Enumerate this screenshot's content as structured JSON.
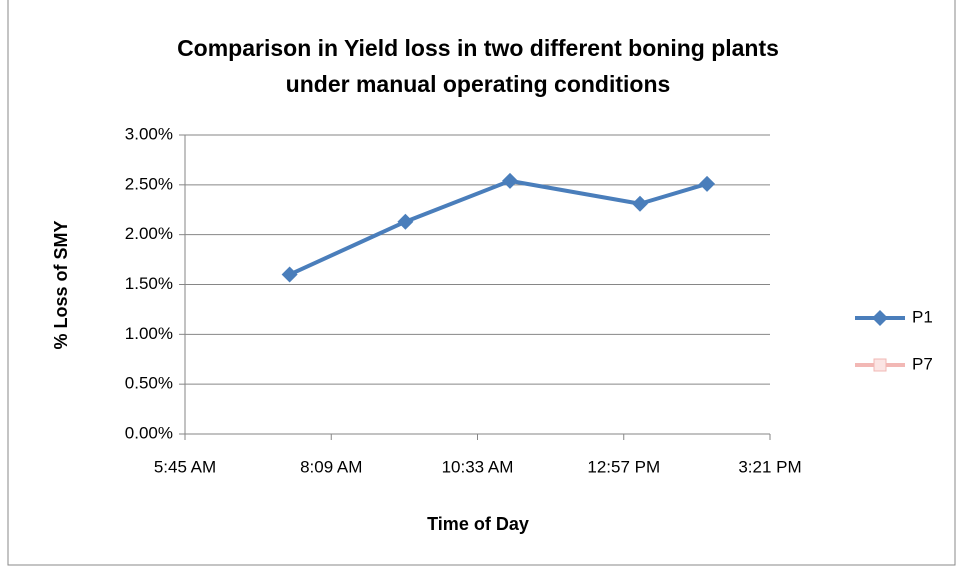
{
  "chart_data": {
    "type": "line",
    "title": [
      "Comparison in Yield loss in two different boning plants",
      "under manual operating conditions"
    ],
    "x_label": "Time of Day",
    "y_label": "% Loss of SMY",
    "x": [
      448,
      562,
      665,
      793,
      859
    ],
    "series": [
      {
        "name": "P1",
        "color": "#4a7ebb",
        "values": [
          1.6,
          2.13,
          2.54,
          2.31,
          2.51
        ]
      },
      {
        "name": "P7",
        "color": "#f2b8b5",
        "values": [
          null,
          null,
          null,
          null,
          null
        ]
      }
    ],
    "xlim": [
      345,
      921
    ],
    "xticks": [
      {
        "value": 345,
        "label": "5:45 AM"
      },
      {
        "value": 489,
        "label": "8:09 AM"
      },
      {
        "value": 633,
        "label": "10:33 AM"
      },
      {
        "value": 777,
        "label": "12:57 PM"
      },
      {
        "value": 921,
        "label": "3:21 PM"
      }
    ],
    "ylim": [
      0,
      3
    ],
    "yticks": [
      {
        "value": 0,
        "label": "0.00%"
      },
      {
        "value": 0.5,
        "label": "0.50%"
      },
      {
        "value": 1,
        "label": "1.00%"
      },
      {
        "value": 1.5,
        "label": "1.50%"
      },
      {
        "value": 2,
        "label": "2.00%"
      },
      {
        "value": 2.5,
        "label": "2.50%"
      },
      {
        "value": 3,
        "label": "3.00%"
      }
    ],
    "grid": true,
    "legend": "right"
  }
}
